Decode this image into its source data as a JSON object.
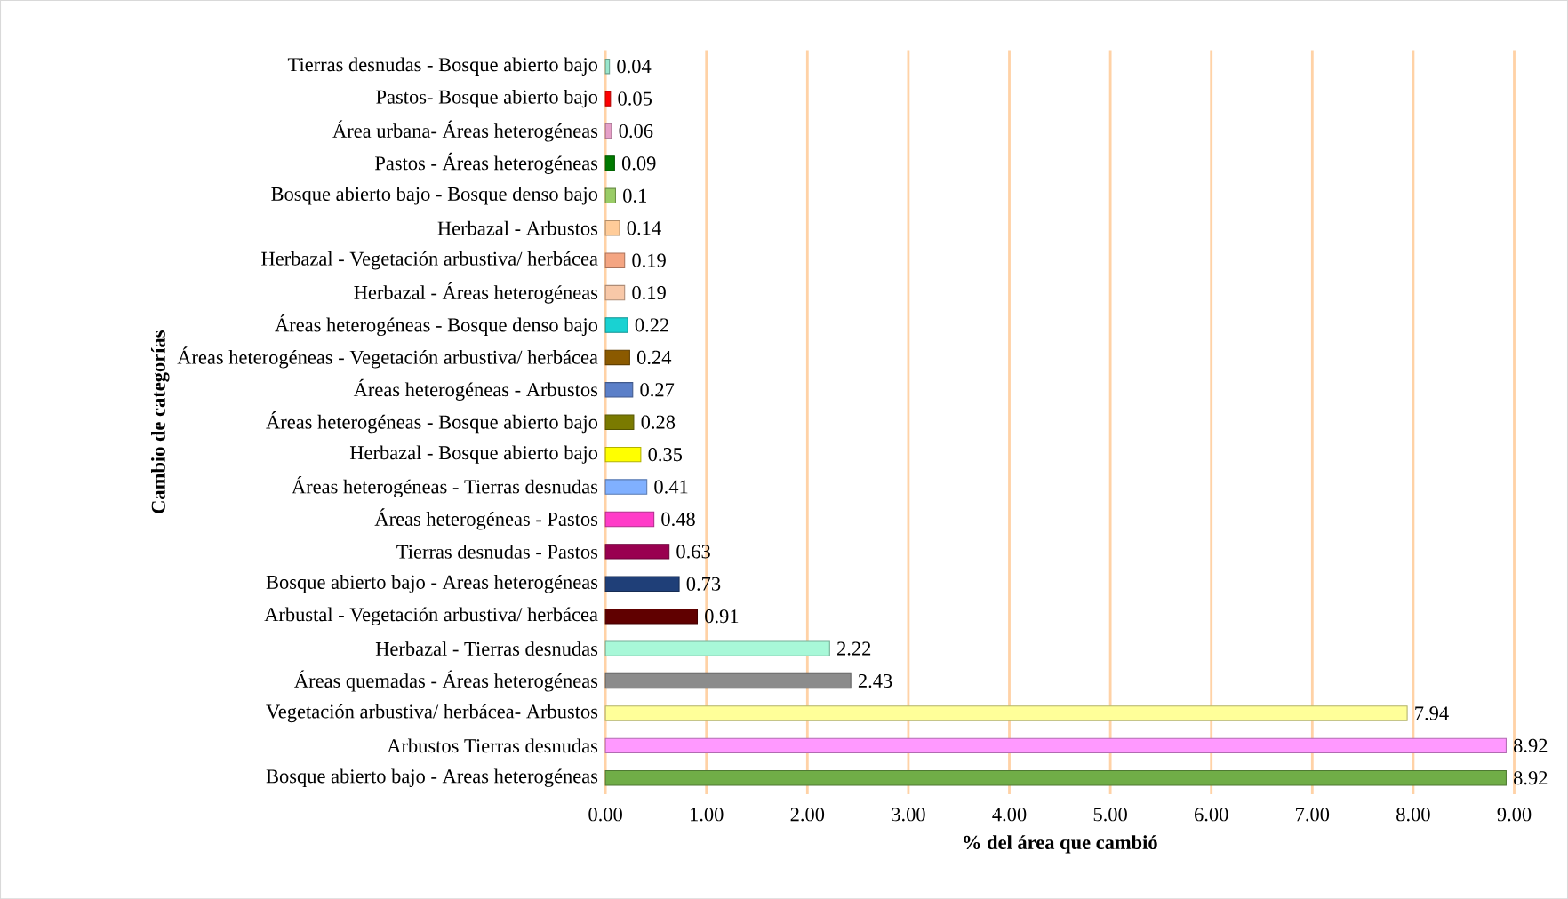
{
  "chart_data": {
    "type": "bar",
    "orientation": "horizontal",
    "xlabel": "% del área que cambió",
    "ylabel": "Cambio de categorías",
    "categories": [
      "Tierras desnudas     - Bosque abierto bajo",
      "Pastos- Bosque abierto bajo",
      "Área urbana- Áreas heterogéneas",
      "Pastos - Áreas heterogéneas",
      "Bosque abierto bajo - Bosque denso bajo",
      "Herbazal - Arbustos",
      "Herbazal - Vegetación arbustiva/ herbácea",
      "Herbazal - Áreas heterogéneas",
      "Áreas heterogéneas -  Bosque denso bajo",
      "Áreas heterogéneas - Vegetación arbustiva/ herbácea",
      "Áreas heterogéneas - Arbustos",
      "Áreas heterogéneas -  Bosque abierto bajo",
      "Herbazal - Bosque abierto bajo",
      "Áreas heterogéneas -   Tierras desnudas",
      "Áreas heterogéneas - Pastos",
      "Tierras desnudas     - Pastos",
      "Bosque abierto bajo - Areas heterogéneas",
      "Arbustal - Vegetación arbustiva/ herbácea",
      "Herbazal -   Tierras desnudas",
      "Áreas quemadas - Áreas heterogéneas",
      "Vegetación arbustiva/ herbácea- Arbustos",
      "Arbustos   Tierras desnudas",
      "Bosque abierto bajo - Areas heterogéneas"
    ],
    "values": [
      0.04,
      0.05,
      0.06,
      0.09,
      0.1,
      0.14,
      0.19,
      0.19,
      0.22,
      0.24,
      0.27,
      0.28,
      0.35,
      0.41,
      0.48,
      0.63,
      0.73,
      0.91,
      2.22,
      2.43,
      7.94,
      8.92,
      8.92
    ],
    "value_labels": [
      "0.04",
      "0.05",
      "0.06",
      "0.09",
      "0.1",
      "0.14",
      "0.19",
      "0.19",
      "0.22",
      "0.24",
      "0.27",
      "0.28",
      "0.35",
      "0.41",
      "0.48",
      "0.63",
      "0.73",
      "0.91",
      "2.22",
      "2.43",
      "7.94",
      "8.92",
      "8.92"
    ],
    "colors": [
      "#99e6cc",
      "#ff0000",
      "#e6a0c8",
      "#007a00",
      "#99cc66",
      "#ffcc99",
      "#f4a582",
      "#f8c8a8",
      "#19d2d2",
      "#8b5a00",
      "#5b7fc8",
      "#7a7a00",
      "#ffff00",
      "#80b0ff",
      "#ff3cc8",
      "#990050",
      "#1f3f78",
      "#600000",
      "#a8f8d8",
      "#8c8c8c",
      "#ffff99",
      "#ff99ff",
      "#70ad47"
    ],
    "xlim": [
      0,
      9
    ],
    "xticks": [
      {
        "value": 0,
        "label": "0.00"
      },
      {
        "value": 1,
        "label": "1.00"
      },
      {
        "value": 2,
        "label": "2.00"
      },
      {
        "value": 3,
        "label": "3.00"
      },
      {
        "value": 4,
        "label": "4.00"
      },
      {
        "value": 5,
        "label": "5.00"
      },
      {
        "value": 6,
        "label": "6.00"
      },
      {
        "value": 7,
        "label": "7.00"
      },
      {
        "value": 8,
        "label": "8.00"
      },
      {
        "value": 9,
        "label": "9.00"
      }
    ],
    "grid": "x"
  }
}
